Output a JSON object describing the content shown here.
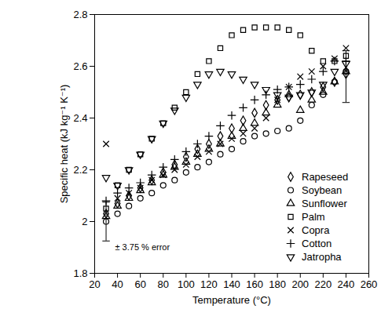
{
  "chart_data": {
    "type": "scatter",
    "xlabel": "Temperature (°C)",
    "ylabel": "Specific heat (kJ kg⁻¹ K⁻¹)",
    "xlim": [
      20,
      260
    ],
    "xticks": [
      20,
      40,
      60,
      80,
      100,
      120,
      140,
      160,
      180,
      200,
      220,
      240,
      260
    ],
    "ylim": [
      1.8,
      2.8
    ],
    "yticks": [
      1.8,
      2,
      2.2,
      2.4,
      2.6,
      2.8
    ],
    "grid": false,
    "legend": "bottom-right",
    "x": [
      30,
      40,
      50,
      60,
      70,
      80,
      90,
      100,
      110,
      120,
      130,
      140,
      150,
      160,
      170,
      180,
      190,
      200,
      210,
      220,
      230,
      240
    ],
    "series": [
      {
        "name": "Rapeseed",
        "color": "#000000",
        "marker": "diamond",
        "values": [
          2.03,
          2.07,
          2.1,
          2.13,
          2.16,
          2.19,
          2.22,
          2.25,
          2.28,
          2.3,
          2.33,
          2.36,
          2.39,
          2.42,
          2.45,
          2.47,
          2.48,
          2.49,
          2.5,
          2.52,
          2.54,
          2.57
        ]
      },
      {
        "name": "Soybean",
        "color": "#000000",
        "marker": "circle",
        "values": [
          2.0,
          2.03,
          2.06,
          2.09,
          2.11,
          2.14,
          2.16,
          2.19,
          2.21,
          2.23,
          2.26,
          2.28,
          2.31,
          2.33,
          2.34,
          2.35,
          2.36,
          2.39,
          2.45,
          2.49,
          2.54,
          2.58
        ]
      },
      {
        "name": "Sunflower",
        "color": "#000000",
        "marker": "triangle",
        "values": [
          2.02,
          2.06,
          2.09,
          2.12,
          2.15,
          2.18,
          2.21,
          2.23,
          2.26,
          2.28,
          2.3,
          2.33,
          2.36,
          2.38,
          2.42,
          2.45,
          2.49,
          2.43,
          2.47,
          2.5,
          2.54,
          2.58
        ]
      },
      {
        "name": "Palm",
        "color": "#000000",
        "marker": "square",
        "values": [
          2.05,
          2.14,
          2.2,
          2.26,
          2.32,
          2.38,
          2.44,
          2.5,
          2.57,
          2.62,
          2.67,
          2.72,
          2.74,
          2.75,
          2.75,
          2.75,
          2.74,
          2.72,
          2.66,
          2.62,
          2.62,
          2.64
        ]
      },
      {
        "name": "Copra",
        "color": "#000000",
        "marker": "times",
        "values": [
          2.3,
          2.09,
          2.11,
          2.13,
          2.16,
          2.18,
          2.2,
          2.22,
          2.25,
          2.27,
          2.3,
          2.32,
          2.34,
          2.36,
          2.4,
          2.47,
          2.52,
          2.56,
          2.58,
          2.6,
          2.63,
          2.67
        ]
      },
      {
        "name": "Cotton",
        "color": "#000000",
        "marker": "plus",
        "values": [
          2.08,
          2.11,
          2.13,
          2.15,
          2.18,
          2.21,
          2.24,
          2.27,
          2.3,
          2.33,
          2.37,
          2.41,
          2.44,
          2.47,
          2.49,
          2.51,
          2.52,
          2.53,
          2.55,
          2.58,
          2.62,
          2.62
        ]
      },
      {
        "name": "Jatropha",
        "color": "#000000",
        "marker": "triangle-down",
        "values": [
          2.17,
          2.14,
          2.2,
          2.26,
          2.32,
          2.38,
          2.43,
          2.48,
          2.53,
          2.57,
          2.58,
          2.57,
          2.55,
          2.53,
          2.51,
          2.49,
          2.48,
          2.49,
          2.5,
          2.53,
          2.58,
          2.61
        ]
      }
    ],
    "error_bars": [
      {
        "x": 30,
        "y": 2.0,
        "error": 0.075
      },
      {
        "x": 240,
        "y": 2.56,
        "error": 0.1
      }
    ],
    "annotations": [
      "± 3.75 % error"
    ]
  }
}
